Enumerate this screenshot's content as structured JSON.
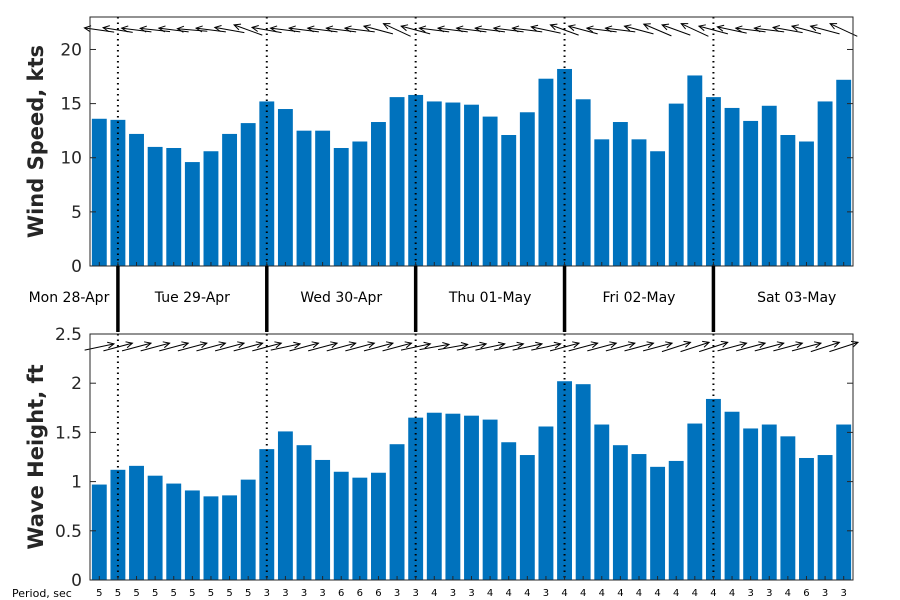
{
  "chart_data": [
    {
      "type": "bar",
      "ylabel": "Wind Speed, kts",
      "ylim": [
        0,
        23
      ],
      "yticks": [
        0,
        5,
        10,
        15,
        20
      ],
      "values": [
        13.6,
        13.5,
        12.2,
        11.0,
        10.9,
        9.6,
        10.6,
        12.2,
        13.2,
        15.2,
        14.5,
        12.5,
        12.5,
        10.9,
        11.5,
        13.3,
        15.6,
        15.8,
        15.2,
        15.1,
        14.9,
        13.8,
        12.1,
        14.2,
        17.3,
        18.2,
        15.4,
        11.7,
        13.3,
        11.7,
        10.6,
        15.0,
        17.6,
        15.6,
        14.6,
        13.4,
        14.8,
        12.1,
        11.5,
        15.2,
        17.2
      ],
      "direction_deg": [
        188,
        189,
        187,
        186,
        187,
        185,
        187,
        190,
        200,
        190,
        187,
        187,
        187,
        187,
        187,
        195,
        205,
        195,
        187,
        187,
        187,
        187,
        187,
        187,
        192,
        200,
        195,
        187,
        187,
        195,
        203,
        200,
        205,
        195,
        192,
        187,
        187,
        190,
        195,
        195,
        205
      ],
      "grid": false
    },
    {
      "type": "bar",
      "ylabel": "Wave Height, ft",
      "ylim": [
        0,
        2.5
      ],
      "yticks": [
        "0",
        "0.5",
        "1",
        "1.5",
        "2",
        "2.5"
      ],
      "values": [
        0.97,
        1.12,
        1.16,
        1.06,
        0.98,
        0.91,
        0.85,
        0.86,
        1.02,
        1.33,
        1.51,
        1.37,
        1.22,
        1.1,
        1.04,
        1.09,
        1.38,
        1.65,
        1.7,
        1.69,
        1.67,
        1.63,
        1.4,
        1.27,
        1.56,
        2.02,
        1.99,
        1.58,
        1.37,
        1.28,
        1.15,
        1.21,
        1.59,
        1.84,
        1.71,
        1.54,
        1.58,
        1.46,
        1.24,
        1.27,
        1.58
      ],
      "direction_deg": [
        -12,
        -15,
        -15,
        -15,
        -15,
        -15,
        -15,
        -15,
        -15,
        -15,
        -12,
        -15,
        -15,
        -15,
        -15,
        -15,
        -15,
        -12,
        -10,
        -10,
        -12,
        -12,
        -12,
        -12,
        -12,
        -15,
        -15,
        -15,
        -15,
        -15,
        -15,
        -18,
        -18,
        -18,
        -15,
        -15,
        -15,
        -15,
        -15,
        -18,
        -18
      ],
      "grid": false
    }
  ],
  "days": [
    {
      "label": "Mon 28-Apr",
      "start": 0,
      "end": 1.5
    },
    {
      "label": "Tue 29-Apr",
      "start": 1.5,
      "end": 9.5
    },
    {
      "label": "Wed 30-Apr",
      "start": 9.5,
      "end": 17.5
    },
    {
      "label": "Thu 01-May",
      "start": 17.5,
      "end": 25.5
    },
    {
      "label": "Fri 02-May",
      "start": 25.5,
      "end": 33.5
    },
    {
      "label": "Sat 03-May",
      "start": 33.5,
      "end": 41
    }
  ],
  "period_label": "Period, sec",
  "periods": [
    "5",
    "5",
    "5",
    "5",
    "5",
    "5",
    "5",
    "5",
    "5",
    "3",
    "3",
    "3",
    "3",
    "6",
    "6",
    "6",
    "3",
    "3",
    "4",
    "3",
    "3",
    "4",
    "4",
    "4",
    "3",
    "4",
    "4",
    "4",
    "4",
    "4",
    "4",
    "4",
    "4",
    "4",
    "4",
    "3",
    "3",
    "4",
    "6",
    "3",
    "3"
  ],
  "colors": {
    "bar": "#0072bd",
    "axis": "#262626",
    "arrow": "#000000"
  }
}
